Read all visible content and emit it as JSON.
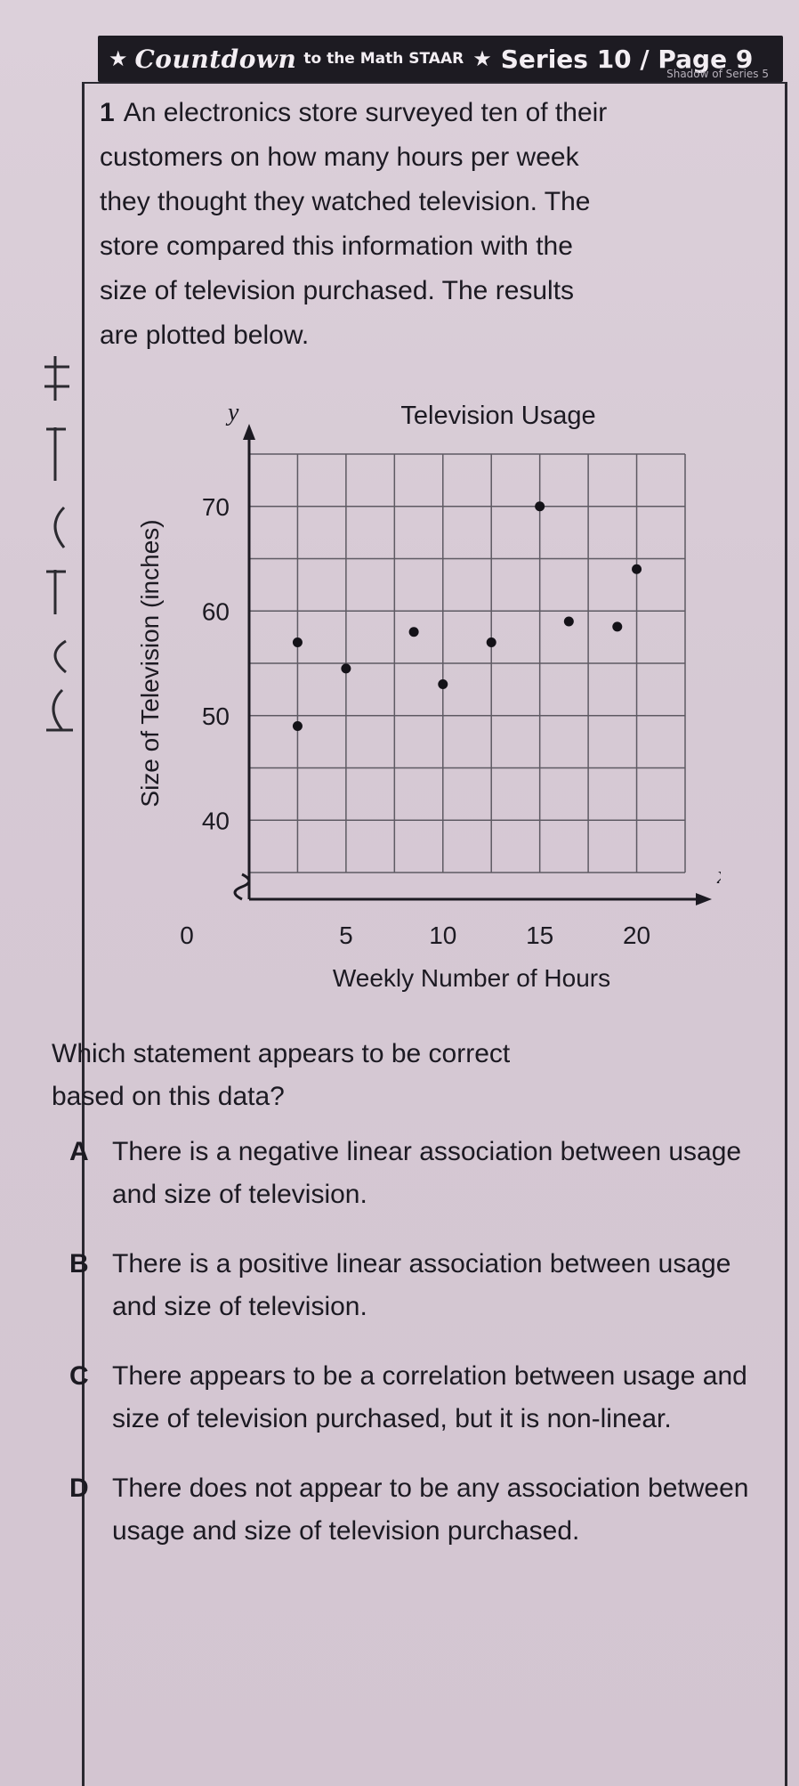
{
  "banner": {
    "star_icon": "★",
    "brand": "Countdown",
    "sub": "to the Math STAAR",
    "star2_icon": "★",
    "series": "Series 10 / Page 9",
    "shadow": "Shadow of Series 5"
  },
  "question": {
    "number": "1",
    "lines": [
      "An electronics store surveyed ten of their",
      "customers on how many hours per week",
      "they thought they watched television. The",
      "store compared this information with the",
      "size of television purchased. The results",
      "are plotted below."
    ]
  },
  "chart_data": {
    "type": "scatter",
    "title": "Television Usage",
    "xlabel": "Weekly Number of Hours",
    "ylabel": "Size of Television (inches)",
    "x_axis_letter": "x",
    "y_axis_letter": "y",
    "origin_label": "0",
    "xlim": [
      0,
      22.5
    ],
    "ylim": [
      35,
      75
    ],
    "x_ticks": [
      5,
      10,
      15,
      20
    ],
    "y_ticks": [
      40,
      50,
      60,
      70
    ],
    "grid": true,
    "y_axis_break": true,
    "points": [
      {
        "x": 2.5,
        "y": 49
      },
      {
        "x": 2.5,
        "y": 57
      },
      {
        "x": 5,
        "y": 54.5
      },
      {
        "x": 8.5,
        "y": 58
      },
      {
        "x": 10,
        "y": 53
      },
      {
        "x": 12.5,
        "y": 57
      },
      {
        "x": 15,
        "y": 70
      },
      {
        "x": 16.5,
        "y": 59
      },
      {
        "x": 19,
        "y": 58.5
      },
      {
        "x": 20,
        "y": 64
      }
    ]
  },
  "prompt": {
    "lines": [
      "Which statement appears to be correct",
      "based on this data?"
    ]
  },
  "choices": [
    {
      "letter": "A",
      "text": "There is a negative linear association between usage and size of television."
    },
    {
      "letter": "B",
      "text": "There is a positive linear association between usage and size of television."
    },
    {
      "letter": "C",
      "text": "There appears to be a correlation between usage and size of television purchased, but it is non-linear."
    },
    {
      "letter": "D",
      "text": "There does not appear to be any association between usage and size of television purchased."
    }
  ]
}
